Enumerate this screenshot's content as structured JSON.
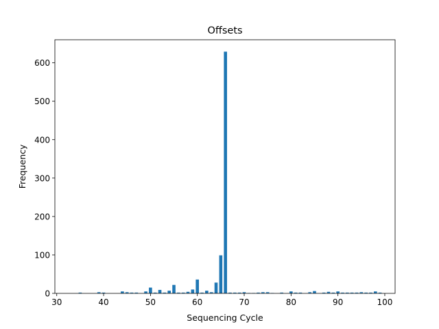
{
  "chart_data": {
    "type": "bar",
    "title": "Offsets",
    "xlabel": "Sequencing Cycle",
    "ylabel": "Frequency",
    "xlim": [
      29.6,
      102.2
    ],
    "ylim": [
      0,
      660
    ],
    "xticks": [
      30,
      40,
      50,
      60,
      70,
      80,
      90,
      100
    ],
    "yticks": [
      0,
      100,
      200,
      300,
      400,
      500,
      600
    ],
    "bar_color": "#1f77b4",
    "grid": false,
    "x": [
      35,
      39,
      40,
      44,
      45,
      46,
      47,
      49,
      50,
      51,
      52,
      53,
      54,
      55,
      56,
      57,
      58,
      59,
      60,
      61,
      62,
      63,
      64,
      65,
      66,
      67,
      68,
      69,
      70,
      71,
      72,
      73,
      74,
      75,
      76,
      78,
      80,
      81,
      82,
      84,
      85,
      87,
      88,
      89,
      90,
      91,
      92,
      93,
      94,
      95,
      96,
      97,
      98,
      99
    ],
    "values": [
      2,
      3,
      2,
      5,
      3,
      2,
      2,
      5,
      15,
      2,
      9,
      2,
      7,
      22,
      2,
      2,
      4,
      10,
      36,
      2,
      7,
      3,
      28,
      99,
      629,
      2,
      2,
      2,
      3,
      1,
      1,
      2,
      3,
      3,
      1,
      2,
      5,
      2,
      2,
      3,
      6,
      2,
      4,
      2,
      5,
      2,
      2,
      2,
      2,
      3,
      2,
      2,
      5,
      2
    ]
  }
}
